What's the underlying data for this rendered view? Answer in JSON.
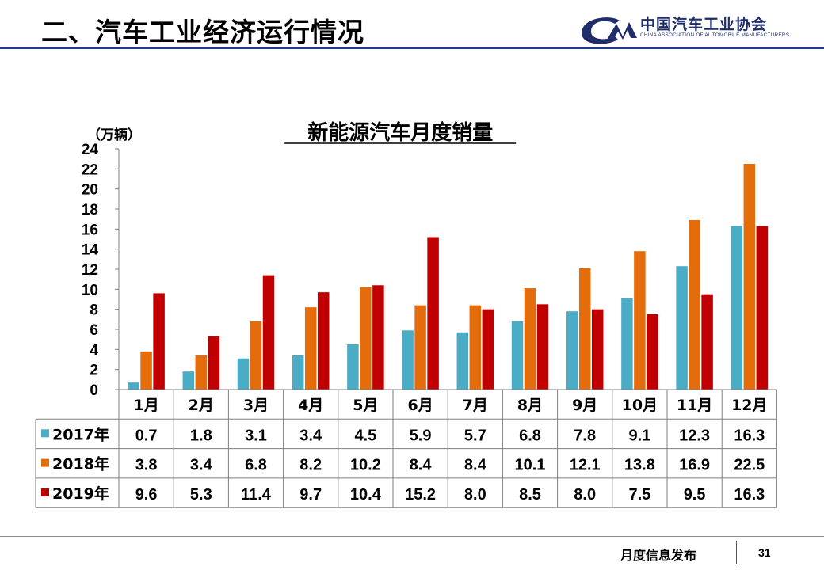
{
  "slide": {
    "title": "二、汽车工业经济运行情况",
    "logo_text": "中国汽车工业协会",
    "logo_subtext": "CHINA ASSOCIATION OF AUTOMOBILE MANUFACTURERS",
    "footer_text": "月度信息发布",
    "page_number": "31"
  },
  "chart_data": {
    "type": "bar",
    "title": "新能源汽车月度销量",
    "ylabel": "（万辆）",
    "xlabel": "",
    "ylim": [
      0,
      24
    ],
    "yticks": [
      "0",
      "2",
      "4",
      "6",
      "8",
      "10",
      "12",
      "14",
      "16",
      "18",
      "20",
      "22",
      "24"
    ],
    "grid": false,
    "legend": "table-left",
    "categories": [
      "1月",
      "2月",
      "3月",
      "4月",
      "5月",
      "6月",
      "7月",
      "8月",
      "9月",
      "10月",
      "11月",
      "12月"
    ],
    "series": [
      {
        "name": "2017年",
        "color": "#4BACC6",
        "values": [
          0.7,
          1.8,
          3.1,
          3.4,
          4.5,
          5.9,
          5.7,
          6.8,
          7.8,
          9.1,
          12.3,
          16.3
        ],
        "labels": [
          "0.7",
          "1.8",
          "3.1",
          "3.4",
          "4.5",
          "5.9",
          "5.7",
          "6.8",
          "7.8",
          "9.1",
          "12.3",
          "16.3"
        ]
      },
      {
        "name": "2018年",
        "color": "#E46C0A",
        "values": [
          3.8,
          3.4,
          6.8,
          8.2,
          10.2,
          8.4,
          8.4,
          10.1,
          12.1,
          13.8,
          16.9,
          22.5
        ],
        "labels": [
          "3.8",
          "3.4",
          "6.8",
          "8.2",
          "10.2",
          "8.4",
          "8.4",
          "10.1",
          "12.1",
          "13.8",
          "16.9",
          "22.5"
        ]
      },
      {
        "name": "2019年",
        "color": "#C00000",
        "values": [
          9.6,
          5.3,
          11.4,
          9.7,
          10.4,
          15.2,
          8.0,
          8.5,
          8.0,
          7.5,
          9.5,
          16.3
        ],
        "labels": [
          "9.6",
          "5.3",
          "11.4",
          "9.7",
          "10.4",
          "15.2",
          "8.0",
          "8.5",
          "8.0",
          "7.5",
          "9.5",
          "16.3"
        ]
      }
    ]
  }
}
